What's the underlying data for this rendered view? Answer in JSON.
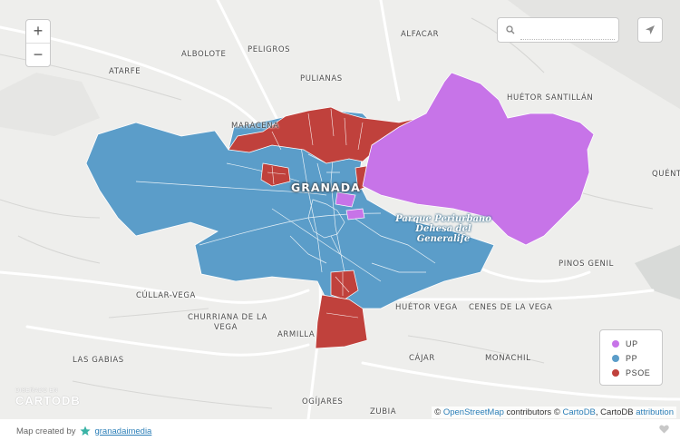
{
  "map": {
    "places": {
      "alfacar": "ALFACAR",
      "peligros": "PELIGROS",
      "albolote": "ALBOLOTE",
      "atarfe": "ATARFE",
      "pulianas": "PULIANAS",
      "maracena": "MARACENA",
      "huetor_santillan": "HUÉTOR SANTILLÁN",
      "quentar": "QUÉNT",
      "granada": "GRANADA",
      "pinos_genil": "PINOS GENIL",
      "cullar_vega": "CÚLLAR-VEGA",
      "churriana_1": "CHURRIANA DE LA",
      "churriana_2": "VEGA",
      "huetor_vega": "HUÉTOR VEGA",
      "cenes": "CENES DE LA VEGA",
      "armilla": "ARMILLA",
      "las_gabias": "LAS GABIAS",
      "cajar": "CÁJAR",
      "monachil": "MONACHIL",
      "ogijares": "OGÍJARES",
      "zubia": "ZUBIA"
    },
    "park_label": [
      "Parque Periurbano",
      "Dehesa del",
      "Generalife"
    ],
    "zoom_in": "+",
    "zoom_out": "−",
    "search_icon": "search-icon",
    "locate_icon": "navigation-arrow-icon",
    "colors": {
      "UP": "#c774e8",
      "PP": "#5b9dc9",
      "PSOE": "#c0413c"
    }
  },
  "legend": {
    "items": [
      {
        "label": "UP",
        "color": "#c774e8"
      },
      {
        "label": "PP",
        "color": "#5b9dc9"
      },
      {
        "label": "PSOE",
        "color": "#c0413c"
      }
    ]
  },
  "attribution": {
    "prefix": "©",
    "osm": "OpenStreetMap",
    "contrib": "contributors ©",
    "cartodb": "CartoDB",
    "comma": ", CartoDB",
    "attr": "attribution"
  },
  "watermark": {
    "small": "DISEÑADO EN",
    "big": "CARTODB"
  },
  "footer": {
    "created_by": "Map created by",
    "author": "granadaimedia"
  }
}
